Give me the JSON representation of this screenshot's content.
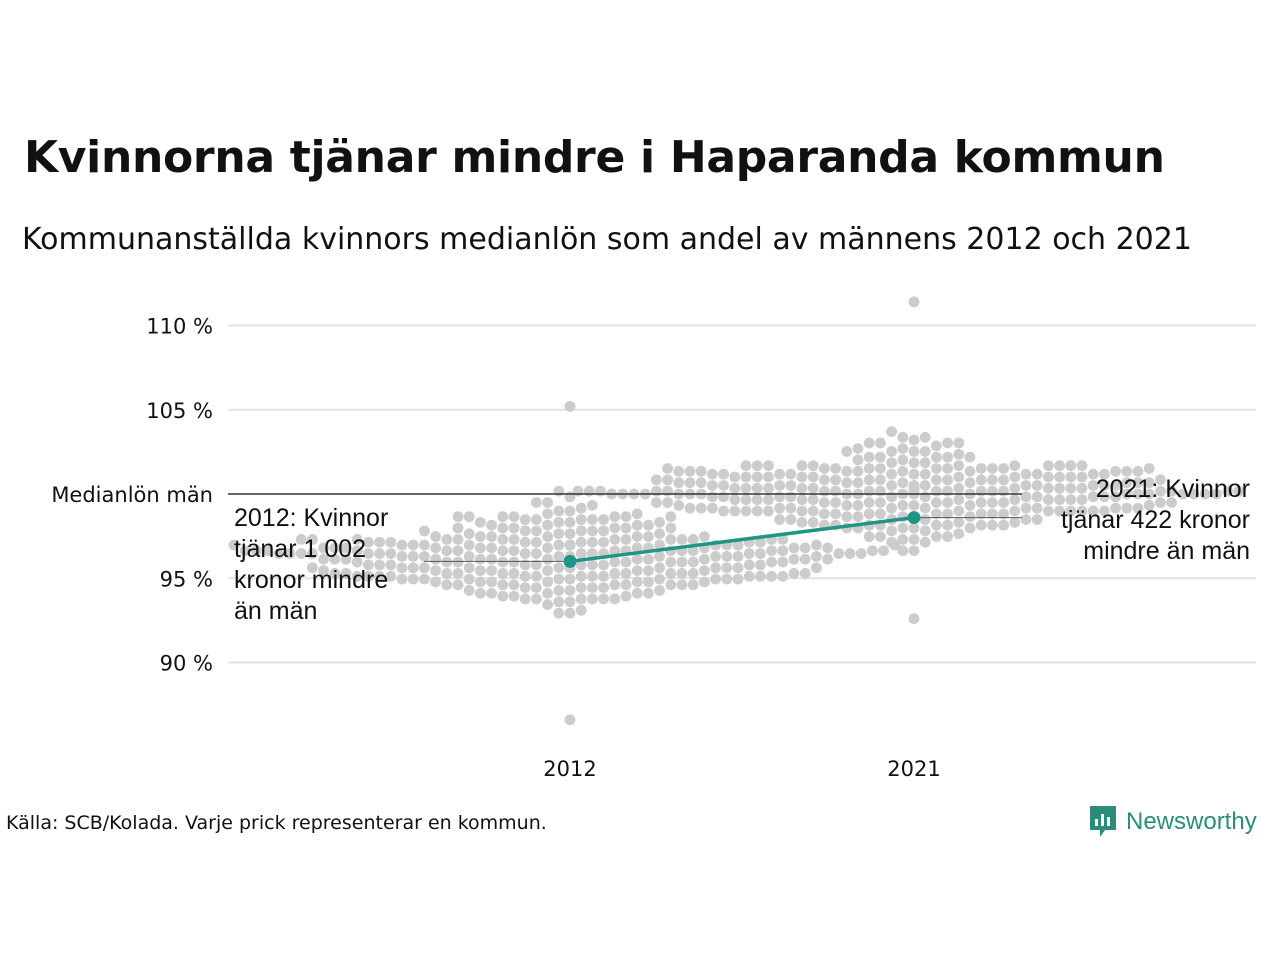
{
  "title": "Kvinnorna tjänar mindre i Haparanda kommun",
  "subtitle": "Kommunanställda kvinnors medianlön som andel av männens 2012 och 2021",
  "source": "Källa: SCB/Kolada. Varje prick representerar en kommun.",
  "brand": "Newsworthy",
  "colors": {
    "highlight": "#1f9585",
    "dots": "#cccccc",
    "grid": "#e3e3e3",
    "reference": "#333333"
  },
  "chart_data": {
    "type": "scatter",
    "subtype": "beeswarm",
    "x": [
      "2012",
      "2021"
    ],
    "ylim": [
      86,
      111.5
    ],
    "yticks": [
      {
        "value": 90,
        "label": "90 %"
      },
      {
        "value": 95,
        "label": "95 %"
      },
      {
        "value": 105,
        "label": "105 %"
      },
      {
        "value": 110,
        "label": "110 %"
      }
    ],
    "reference_line": {
      "value": 100,
      "label": "Medianlön män"
    },
    "highlight": {
      "series": [
        {
          "x": "2012",
          "value": 96.0
        },
        {
          "x": "2021",
          "value": 98.6
        }
      ],
      "annotations": [
        {
          "x": "2012",
          "lines": [
            "2012: Kvinnor",
            "tjänar 1 002",
            "kronor mindre",
            "än män"
          ]
        },
        {
          "x": "2021",
          "lines": [
            "2021: Kvinnor",
            "tjänar 422 kronor",
            "mindre än män"
          ]
        }
      ]
    },
    "distribution": [
      {
        "x": "2012",
        "n": 290,
        "median": 96.3,
        "min": 86.6,
        "max": 105.2
      },
      {
        "x": "2021",
        "n": 290,
        "median": 100.2,
        "min": 92.6,
        "max": 111.4
      }
    ]
  }
}
